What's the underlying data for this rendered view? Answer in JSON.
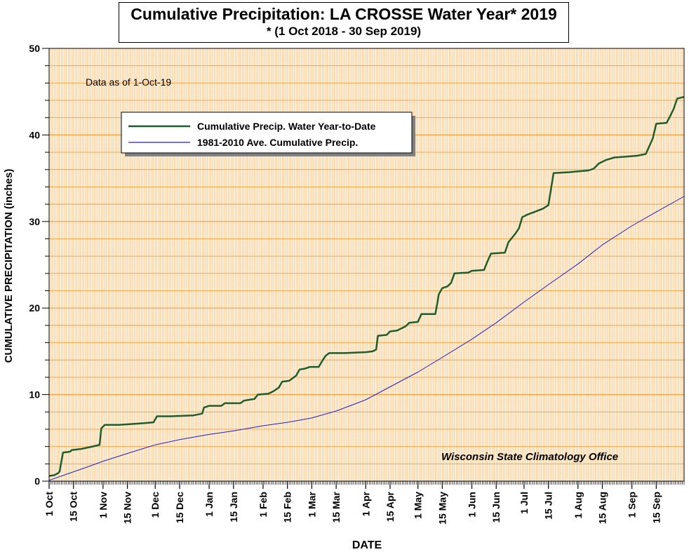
{
  "title": "Cumulative Precipitation: LA CROSSE Water Year* 2019",
  "subtitle": "* (1 Oct 2018 - 30 Sep 2019)",
  "annotation": "Data as of 1-Oct-19",
  "credit": "Wisconsin State Climatology Office",
  "colors": {
    "plot_background": "#fdf0d8",
    "grid_major": "#f0a040",
    "grid_minor_vertical": "#f7b878",
    "observed_series": "#1e5e2e",
    "average_series": "#2020c8"
  },
  "chart_data": {
    "type": "line",
    "xlabel": "DATE",
    "ylabel": "CUMULATIVE PRECIPITATION (inches)",
    "ylim": [
      0,
      50
    ],
    "xlim_days": [
      0,
      365
    ],
    "grid": true,
    "legend_placement": "top-left",
    "y_ticks": [
      0,
      10,
      20,
      30,
      40,
      50
    ],
    "x_ticks": [
      {
        "day": 0,
        "label": "1 Oct"
      },
      {
        "day": 14,
        "label": "15 Oct"
      },
      {
        "day": 31,
        "label": "1 Nov"
      },
      {
        "day": 45,
        "label": "15 Nov"
      },
      {
        "day": 61,
        "label": "1 Dec"
      },
      {
        "day": 75,
        "label": "15 Dec"
      },
      {
        "day": 92,
        "label": "1 Jan"
      },
      {
        "day": 106,
        "label": "15 Jan"
      },
      {
        "day": 123,
        "label": "1 Feb"
      },
      {
        "day": 137,
        "label": "15 Feb"
      },
      {
        "day": 151,
        "label": "1 Mar"
      },
      {
        "day": 165,
        "label": "15 Mar"
      },
      {
        "day": 182,
        "label": "1 Apr"
      },
      {
        "day": 196,
        "label": "15 Apr"
      },
      {
        "day": 212,
        "label": "1 May"
      },
      {
        "day": 226,
        "label": "15 May"
      },
      {
        "day": 243,
        "label": "1 Jun"
      },
      {
        "day": 257,
        "label": "15 Jun"
      },
      {
        "day": 273,
        "label": "1 Jul"
      },
      {
        "day": 287,
        "label": "15 Jul"
      },
      {
        "day": 304,
        "label": "1 Aug"
      },
      {
        "day": 318,
        "label": "15 Aug"
      },
      {
        "day": 335,
        "label": "1 Sep"
      },
      {
        "day": 349,
        "label": "15 Sep"
      }
    ],
    "series": [
      {
        "name": "Cumulative Precip.  Water Year-to-Date",
        "points": [
          [
            0,
            0.6
          ],
          [
            3,
            0.7
          ],
          [
            5,
            0.9
          ],
          [
            6,
            1.1
          ],
          [
            8,
            3.3
          ],
          [
            12,
            3.4
          ],
          [
            13,
            3.6
          ],
          [
            18,
            3.7
          ],
          [
            25,
            4.0
          ],
          [
            29,
            4.2
          ],
          [
            30,
            6.1
          ],
          [
            32,
            6.5
          ],
          [
            40,
            6.5
          ],
          [
            47,
            6.6
          ],
          [
            55,
            6.7
          ],
          [
            60,
            6.8
          ],
          [
            62,
            7.5
          ],
          [
            70,
            7.5
          ],
          [
            83,
            7.6
          ],
          [
            88,
            7.8
          ],
          [
            89,
            8.5
          ],
          [
            92,
            8.7
          ],
          [
            99,
            8.7
          ],
          [
            101,
            9.0
          ],
          [
            110,
            9.0
          ],
          [
            112,
            9.3
          ],
          [
            115,
            9.4
          ],
          [
            118,
            9.5
          ],
          [
            120,
            10.0
          ],
          [
            126,
            10.1
          ],
          [
            129,
            10.4
          ],
          [
            132,
            10.8
          ],
          [
            134,
            11.5
          ],
          [
            138,
            11.6
          ],
          [
            140,
            11.9
          ],
          [
            142,
            12.2
          ],
          [
            144,
            12.9
          ],
          [
            147,
            13.0
          ],
          [
            150,
            13.2
          ],
          [
            155,
            13.2
          ],
          [
            157,
            13.9
          ],
          [
            159,
            14.5
          ],
          [
            161,
            14.8
          ],
          [
            170,
            14.8
          ],
          [
            182,
            14.9
          ],
          [
            186,
            15.0
          ],
          [
            188,
            15.2
          ],
          [
            189,
            16.8
          ],
          [
            194,
            16.9
          ],
          [
            196,
            17.3
          ],
          [
            200,
            17.4
          ],
          [
            203,
            17.7
          ],
          [
            205,
            17.9
          ],
          [
            207,
            18.3
          ],
          [
            212,
            18.4
          ],
          [
            214,
            19.3
          ],
          [
            222,
            19.3
          ],
          [
            223,
            20.4
          ],
          [
            224,
            21.6
          ],
          [
            226,
            22.3
          ],
          [
            229,
            22.5
          ],
          [
            231,
            22.9
          ],
          [
            233,
            24.0
          ],
          [
            241,
            24.1
          ],
          [
            243,
            24.3
          ],
          [
            250,
            24.4
          ],
          [
            252,
            25.4
          ],
          [
            254,
            26.3
          ],
          [
            262,
            26.4
          ],
          [
            264,
            27.6
          ],
          [
            268,
            28.6
          ],
          [
            270,
            29.2
          ],
          [
            272,
            30.5
          ],
          [
            275,
            30.8
          ],
          [
            279,
            31.1
          ],
          [
            284,
            31.5
          ],
          [
            287,
            31.9
          ],
          [
            290,
            35.6
          ],
          [
            299,
            35.7
          ],
          [
            310,
            35.9
          ],
          [
            313,
            36.1
          ],
          [
            316,
            36.7
          ],
          [
            320,
            37.1
          ],
          [
            325,
            37.4
          ],
          [
            332,
            37.5
          ],
          [
            338,
            37.6
          ],
          [
            343,
            37.8
          ],
          [
            347,
            39.6
          ],
          [
            349,
            41.3
          ],
          [
            355,
            41.4
          ],
          [
            357,
            42.2
          ],
          [
            359,
            43.0
          ],
          [
            361,
            44.2
          ],
          [
            365,
            44.4
          ]
        ]
      },
      {
        "name": "1981-2010 Ave. Cumulative Precip.",
        "points": [
          [
            0,
            0.1
          ],
          [
            10,
            0.8
          ],
          [
            20,
            1.5
          ],
          [
            31,
            2.3
          ],
          [
            45,
            3.2
          ],
          [
            61,
            4.2
          ],
          [
            75,
            4.8
          ],
          [
            92,
            5.4
          ],
          [
            106,
            5.8
          ],
          [
            123,
            6.4
          ],
          [
            137,
            6.8
          ],
          [
            151,
            7.3
          ],
          [
            165,
            8.1
          ],
          [
            182,
            9.4
          ],
          [
            196,
            10.9
          ],
          [
            212,
            12.6
          ],
          [
            226,
            14.3
          ],
          [
            243,
            16.4
          ],
          [
            257,
            18.3
          ],
          [
            273,
            20.7
          ],
          [
            287,
            22.7
          ],
          [
            304,
            25.1
          ],
          [
            318,
            27.3
          ],
          [
            335,
            29.5
          ],
          [
            349,
            31.1
          ],
          [
            365,
            32.9
          ]
        ]
      }
    ]
  }
}
